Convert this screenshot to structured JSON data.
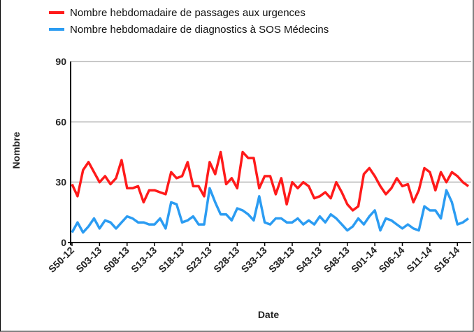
{
  "chart_data": {
    "type": "line",
    "series": [
      {
        "name": "Nombre hebdomadaire de passages aux urgences",
        "color": "#ff1a1a",
        "values": [
          29,
          23,
          36,
          40,
          35,
          30,
          33,
          29,
          32,
          41,
          27,
          27,
          28,
          20,
          26,
          26,
          25,
          24,
          35,
          32,
          33,
          40,
          28,
          28,
          23,
          40,
          34,
          45,
          29,
          32,
          27,
          45,
          42,
          42,
          27,
          33,
          33,
          24,
          32,
          19,
          30,
          27,
          30,
          28,
          22,
          23,
          25,
          22,
          30,
          25,
          19,
          16,
          18,
          34,
          37,
          33,
          28,
          24,
          27,
          32,
          28,
          29,
          20,
          26,
          37,
          35,
          26,
          35,
          30,
          35,
          33,
          30,
          28
        ]
      },
      {
        "name": "Nombre hebdomadaire de diagnostics à SOS Médecins",
        "color": "#2b9cf2",
        "values": [
          5,
          10,
          5,
          8,
          12,
          7,
          11,
          10,
          7,
          10,
          13,
          12,
          10,
          10,
          9,
          9,
          12,
          7,
          20,
          19,
          10,
          11,
          13,
          9,
          9,
          27,
          20,
          14,
          14,
          11,
          17,
          16,
          14,
          11,
          23,
          10,
          9,
          12,
          12,
          10,
          10,
          12,
          9,
          11,
          9,
          13,
          10,
          14,
          12,
          9,
          6,
          8,
          12,
          9,
          13,
          16,
          6,
          12,
          11,
          9,
          7,
          9,
          7,
          6,
          18,
          16,
          16,
          12,
          26,
          20,
          9,
          10,
          12
        ]
      }
    ],
    "categories": [
      "S50-12",
      null,
      null,
      null,
      null,
      "S03-13",
      null,
      null,
      null,
      null,
      "S08-13",
      null,
      null,
      null,
      null,
      "S13-13",
      null,
      null,
      null,
      null,
      "S18-13",
      null,
      null,
      null,
      null,
      "S23-13",
      null,
      null,
      null,
      null,
      "S28-13",
      null,
      null,
      null,
      null,
      "S33-13",
      null,
      null,
      null,
      null,
      "S38-13",
      null,
      null,
      null,
      null,
      "S43-13",
      null,
      null,
      null,
      null,
      "S48-13",
      null,
      null,
      null,
      null,
      "S01-14",
      null,
      null,
      null,
      null,
      "S06-14",
      null,
      null,
      null,
      null,
      "S11-14",
      null,
      null,
      null,
      null,
      "S16-14",
      null,
      null
    ],
    "ylim": [
      0,
      90
    ],
    "yticks": [
      0,
      30,
      60,
      90
    ],
    "grid": true,
    "ylabel": "Nombre",
    "xlabel": "Date"
  }
}
